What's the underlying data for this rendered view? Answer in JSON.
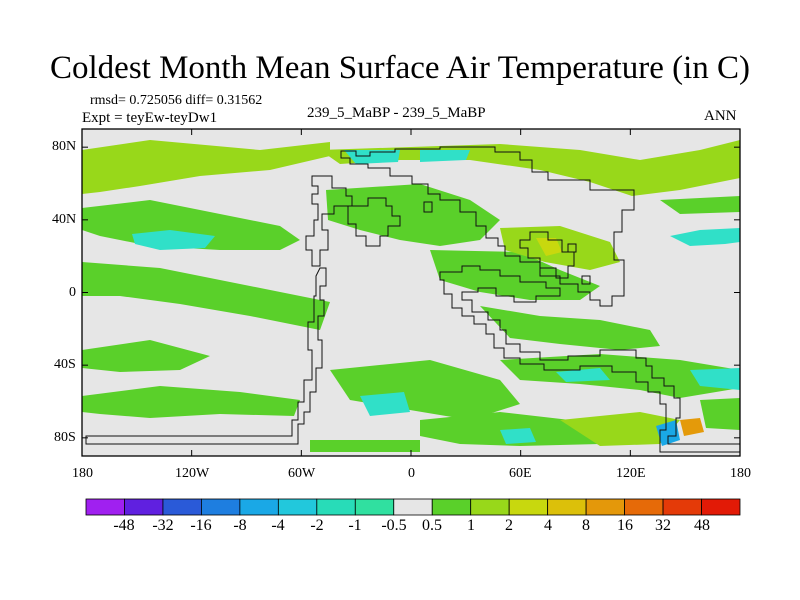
{
  "title": "Coldest Month Mean Surface Air Temperature (in C)",
  "stats_line": "rmsd= 0.725056 diff= 0.31562",
  "expt_line": "Expt = teyEw-teyDw1",
  "center_label": "239_5_MaBP - 239_5_MaBP",
  "season_label": "ANN",
  "x_ticks": [
    "180",
    "120W",
    "60W",
    "0",
    "60E",
    "120E",
    "180"
  ],
  "y_ticks": [
    "80N",
    "40N",
    "0",
    "40S",
    "80S"
  ],
  "colorbar": {
    "boundaries": [
      "-48",
      "-32",
      "-16",
      "-8",
      "-4",
      "-2",
      "-1",
      "-0.5",
      "0.5",
      "1",
      "2",
      "4",
      "8",
      "16",
      "32",
      "48"
    ],
    "colors": [
      "#a020f0",
      "#6020e0",
      "#2a5ad8",
      "#1e7ee0",
      "#1aa8e6",
      "#22c8dc",
      "#28dcb8",
      "#30e0a0",
      "#e6e6e6",
      "#5ad02a",
      "#98d81a",
      "#c8d80e",
      "#dcc00a",
      "#e4980a",
      "#e66a08",
      "#e43a08",
      "#e21a06"
    ]
  },
  "colors": {
    "background": "#e6e6e6",
    "cool": "#30e0c8",
    "cool_dark": "#1aa8e6",
    "warm_1": "#5ad02a",
    "warm_2": "#98d81a",
    "warm_4": "#c8d80e",
    "warm_8": "#e49a0a"
  }
}
